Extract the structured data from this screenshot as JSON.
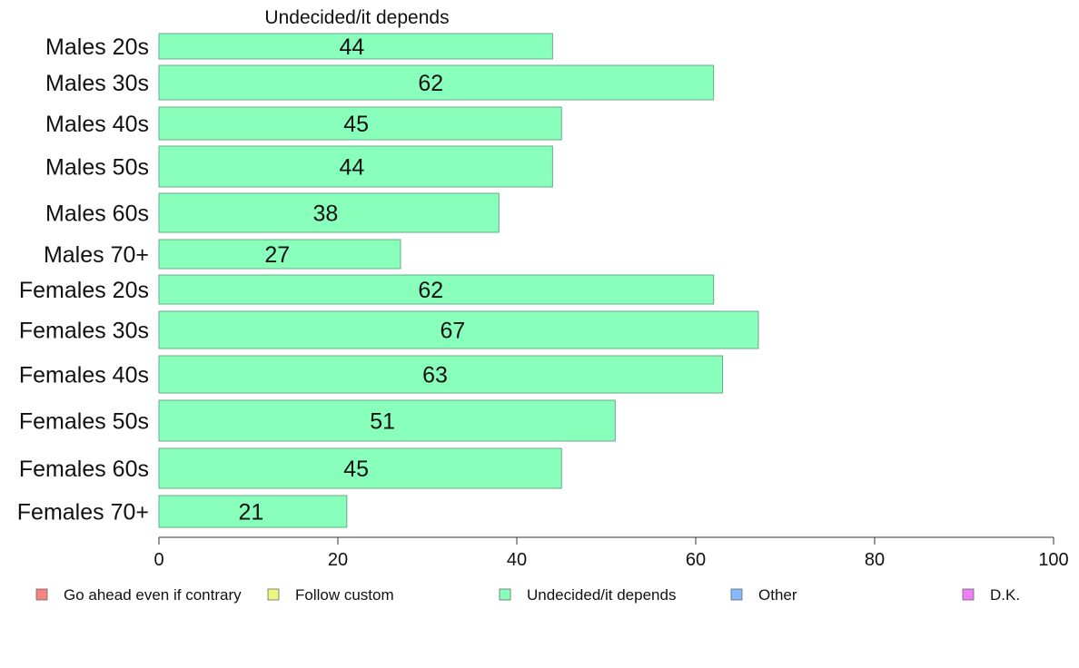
{
  "chart_data": {
    "type": "bar",
    "orientation": "horizontal",
    "title": "Undecided/it depends",
    "categories": [
      "Males 20s",
      "Males 30s",
      "Males 40s",
      "Males 50s",
      "Males 60s",
      "Males 70+",
      "Females 20s",
      "Females 30s",
      "Females 40s",
      "Females 50s",
      "Females 60s",
      "Females 70+"
    ],
    "series": [
      {
        "name": "Undecided/it depends",
        "values": [
          44,
          62,
          45,
          44,
          38,
          27,
          62,
          67,
          63,
          51,
          45,
          21
        ]
      }
    ],
    "xlim": [
      0,
      100
    ],
    "xticks": [
      0,
      20,
      40,
      60,
      80,
      100
    ],
    "grid": false,
    "legend_position": "bottom",
    "legend": [
      {
        "label": "Go ahead even if contrary",
        "color": "#f7857f"
      },
      {
        "label": "Follow custom",
        "color": "#ecf77f"
      },
      {
        "label": "Undecided/it depends",
        "color": "#88ffbb"
      },
      {
        "label": "Other",
        "color": "#88b8ff"
      },
      {
        "label": "D.K.",
        "color": "#ee7ff7"
      }
    ],
    "bar_color": "#88ffbb",
    "bar_stroke": "#6aa88a"
  }
}
